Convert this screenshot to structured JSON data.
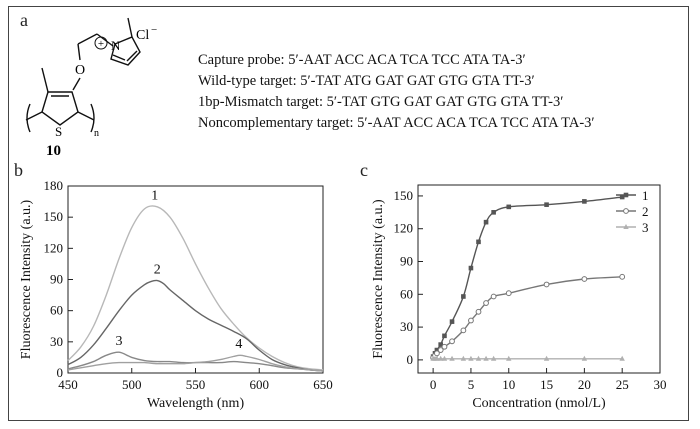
{
  "panels": {
    "a": "a",
    "b": "b",
    "c": "c"
  },
  "structure": {
    "compound_number": "10",
    "counter_ion": "Cl",
    "counter_ion_charge": "−",
    "cation_charge": "+",
    "ring_atom_N": "N",
    "oxygen": "O",
    "sulfur": "S",
    "repeat_n": "n"
  },
  "sequences": [
    "Capture probe: 5′-AAT ACC ACA TCA TCC ATA TA-3′",
    "Wild-type target: 5′-TAT ATG GAT GAT GTG GTA TT-3′",
    "1bp-Mismatch target: 5′-TAT GTG GAT GAT GTG GTA TT-3′",
    "Noncomplementary target: 5′-AAT ACC ACA TCA TCC ATA TA-3′"
  ],
  "chart_data": [
    {
      "panel": "b",
      "type": "line",
      "xlabel": "Wavelength (nm)",
      "ylabel": "Fluorescence Intensity (a.u.)",
      "xlim": [
        450,
        650
      ],
      "ylim": [
        0,
        180
      ],
      "xticks": [
        450,
        500,
        550,
        600,
        650
      ],
      "yticks": [
        0,
        30,
        60,
        90,
        120,
        150,
        180
      ],
      "series": [
        {
          "name": "1",
          "color": "#b8b8b8",
          "x": [
            450,
            460,
            470,
            480,
            490,
            500,
            510,
            520,
            530,
            540,
            550,
            560,
            570,
            580,
            590,
            600,
            610,
            620,
            630,
            640,
            650
          ],
          "y": [
            12,
            25,
            45,
            75,
            110,
            140,
            158,
            160,
            150,
            130,
            105,
            82,
            62,
            47,
            34,
            24,
            16,
            10,
            6,
            4,
            3
          ]
        },
        {
          "name": "2",
          "color": "#666666",
          "x": [
            450,
            460,
            470,
            480,
            490,
            500,
            510,
            515,
            520,
            525,
            530,
            540,
            550,
            560,
            570,
            580,
            590,
            600,
            610,
            620,
            630,
            640,
            650
          ],
          "y": [
            8,
            15,
            27,
            43,
            60,
            75,
            85,
            88,
            89,
            86,
            80,
            70,
            60,
            52,
            46,
            40,
            33,
            22,
            13,
            8,
            5,
            3,
            2
          ]
        },
        {
          "name": "3",
          "color": "#888888",
          "x": [
            450,
            460,
            470,
            480,
            490,
            500,
            510,
            520,
            530,
            540,
            550,
            560,
            570,
            580,
            590,
            600,
            610,
            620,
            630,
            640,
            650
          ],
          "y": [
            4,
            7,
            11,
            17,
            20,
            15,
            12,
            11,
            11,
            10,
            10,
            10,
            10,
            11,
            10,
            9,
            7,
            5,
            4,
            3,
            2
          ]
        },
        {
          "name": "4",
          "color": "#a0a0a0",
          "x": [
            450,
            460,
            470,
            480,
            490,
            500,
            510,
            520,
            530,
            540,
            550,
            560,
            570,
            580,
            585,
            590,
            600,
            610,
            620,
            630,
            640,
            650
          ],
          "y": [
            3,
            5,
            7,
            9,
            10,
            10,
            10,
            9,
            9,
            9,
            10,
            11,
            13,
            16,
            17,
            16,
            13,
            9,
            6,
            4,
            3,
            2
          ]
        }
      ],
      "annotations": [
        {
          "text": "1",
          "x": 518,
          "y": 167
        },
        {
          "text": "2",
          "x": 520,
          "y": 96
        },
        {
          "text": "3",
          "x": 490,
          "y": 27
        },
        {
          "text": "4",
          "x": 584,
          "y": 24
        }
      ],
      "grid": false
    },
    {
      "panel": "c",
      "type": "line",
      "xlabel": "Concentration (nmol/L)",
      "ylabel": "Fluorescence Intensity (a.u.)",
      "xlim": [
        -2,
        30
      ],
      "ylim": [
        -12,
        160
      ],
      "xticks": [
        0,
        5,
        10,
        15,
        20,
        25,
        30
      ],
      "yticks": [
        0,
        30,
        60,
        90,
        120,
        150
      ],
      "legend": "top-right",
      "series": [
        {
          "name": "1",
          "marker": "square",
          "color": "#555555",
          "x": [
            0,
            0.25,
            0.5,
            1,
            1.5,
            2.5,
            4,
            5,
            6,
            7,
            8,
            10,
            15,
            20,
            25
          ],
          "y": [
            3,
            6,
            9,
            14,
            22,
            35,
            58,
            84,
            108,
            126,
            135,
            140,
            142,
            145,
            149
          ]
        },
        {
          "name": "2",
          "marker": "circle",
          "color": "#777777",
          "x": [
            0,
            0.25,
            0.5,
            1,
            1.5,
            2.5,
            4,
            5,
            6,
            7,
            8,
            10,
            15,
            20,
            25
          ],
          "y": [
            2,
            4,
            6,
            9,
            12,
            17,
            27,
            36,
            44,
            52,
            58,
            61,
            69,
            74,
            76
          ]
        },
        {
          "name": "3",
          "marker": "triangle",
          "color": "#b0b0b0",
          "x": [
            0,
            0.25,
            0.5,
            1,
            1.5,
            2.5,
            4,
            5,
            6,
            7,
            8,
            10,
            15,
            20,
            25
          ],
          "y": [
            1,
            1,
            1,
            1,
            1,
            1,
            1,
            1,
            1,
            1,
            1,
            1,
            1,
            1,
            1
          ]
        }
      ],
      "grid": false
    }
  ]
}
